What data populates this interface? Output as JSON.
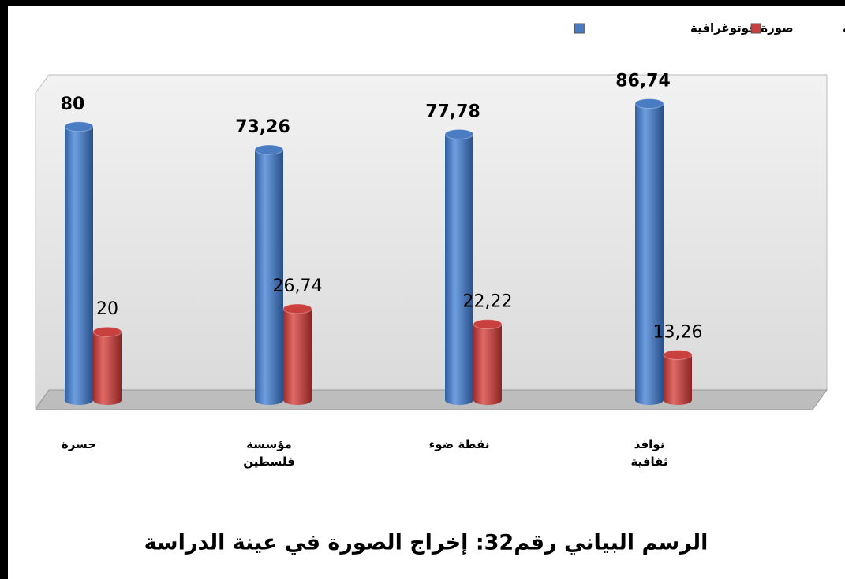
{
  "chart_data": {
    "type": "bar3d",
    "title": "الرسم البياني رقم32: إخراج الصورة في عينة الدراسة",
    "categories": [
      "جسرة",
      "مؤسسة فلسطين",
      "نقطة ضوء",
      "نوافذ ثقافية"
    ],
    "series": [
      {
        "name": "صورة فوتوغرافية",
        "color": "#4a7cc4",
        "values": [
          80,
          73.26,
          77.78,
          86.74
        ],
        "value_labels": [
          "80",
          "73,26",
          "77,78",
          "86,74"
        ]
      },
      {
        "name": "صورة مصممة",
        "color": "#c9413e",
        "values": [
          20,
          26.74,
          22.22,
          13.26
        ],
        "value_labels": [
          "20",
          "26,74",
          "22,22",
          "13,26"
        ]
      }
    ],
    "ylim": [
      0,
      100
    ],
    "legend": "top-right"
  }
}
